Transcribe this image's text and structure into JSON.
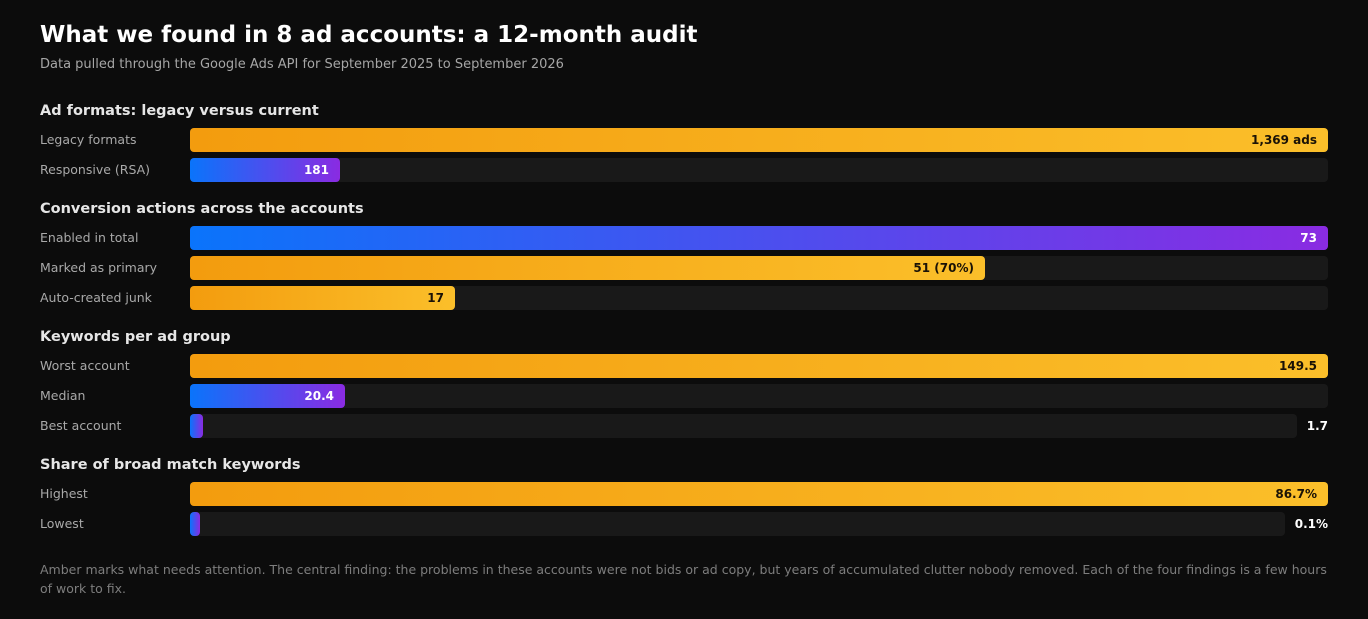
{
  "title": "What we found in 8 ad accounts: a 12-month audit",
  "subtitle": "Data pulled through the Google Ads API for September 2025 to September 2026",
  "footnote": "Amber marks what needs attention. The central finding: the problems in these accounts were not bids or ad copy, but years of accumulated clutter nobody removed. Each of the four findings is a few hours of work to fix.",
  "colors": {
    "amber_start": "#f39c0e",
    "amber_end": "#fbbf2a",
    "blue_start": "#0a74fb",
    "purple_end": "#8a2be2",
    "background": "#0c0c0c"
  },
  "chart_data": [
    {
      "type": "bar",
      "orientation": "horizontal",
      "title": "Ad formats: legacy versus current",
      "bars": [
        {
          "label": "Legacy formats",
          "value": 1369,
          "value_label": "1,369 ads",
          "color": "amber"
        },
        {
          "label": "Responsive (RSA)",
          "value": 181,
          "value_label": "181",
          "color": "blue"
        }
      ]
    },
    {
      "type": "bar",
      "orientation": "horizontal",
      "title": "Conversion actions across the accounts",
      "bars": [
        {
          "label": "Enabled in total",
          "value": 73,
          "value_label": "73",
          "color": "blue"
        },
        {
          "label": "Marked as primary",
          "value": 51,
          "value_label": "51 (70%)",
          "color": "amber"
        },
        {
          "label": "Auto-created junk",
          "value": 17,
          "value_label": "17",
          "color": "amber"
        }
      ]
    },
    {
      "type": "bar",
      "orientation": "horizontal",
      "title": "Keywords per ad group",
      "bars": [
        {
          "label": "Worst account",
          "value": 149.5,
          "value_label": "149.5",
          "color": "amber"
        },
        {
          "label": "Median",
          "value": 20.4,
          "value_label": "20.4",
          "color": "blue"
        },
        {
          "label": "Best account",
          "value": 1.7,
          "value_label": "1.7",
          "color": "blue"
        }
      ]
    },
    {
      "type": "bar",
      "orientation": "horizontal",
      "title": "Share of broad match keywords",
      "bars": [
        {
          "label": "Highest",
          "value": 86.7,
          "value_label": "86.7%",
          "color": "amber"
        },
        {
          "label": "Lowest",
          "value": 0.1,
          "value_label": "0.1%",
          "color": "blue"
        }
      ]
    }
  ]
}
